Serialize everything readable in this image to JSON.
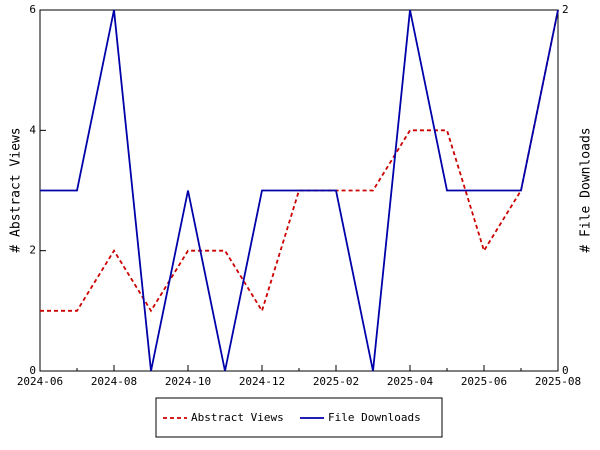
{
  "chart_data": {
    "type": "line",
    "categories": [
      "2024-06",
      null,
      "2024-08",
      null,
      "2024-10",
      null,
      "2024-12",
      null,
      "2025-02",
      null,
      "2025-04",
      null,
      "2025-06",
      null,
      "2025-08"
    ],
    "y_label": "# Abstract Views",
    "y2_label": "# File Downloads",
    "ylim": [
      0,
      6
    ],
    "yticks": [
      0,
      2,
      4,
      6
    ],
    "y2lim": [
      0,
      2
    ],
    "y2ticks": [
      0,
      2
    ],
    "legend": "bottom",
    "series": [
      {
        "name": "Abstract Views",
        "color": "#cc0000",
        "linestyle": "dashed",
        "values": [
          1,
          1,
          2,
          1,
          2,
          2,
          1,
          3,
          3,
          3,
          4,
          4,
          2,
          3,
          6
        ]
      },
      {
        "name": "File Downloads",
        "color": "#0000aa",
        "linestyle": "solid",
        "axis": "y2",
        "values": [
          1,
          1,
          2,
          0,
          1,
          0,
          1,
          1,
          1,
          0,
          2,
          1,
          1,
          1,
          2
        ]
      }
    ]
  }
}
